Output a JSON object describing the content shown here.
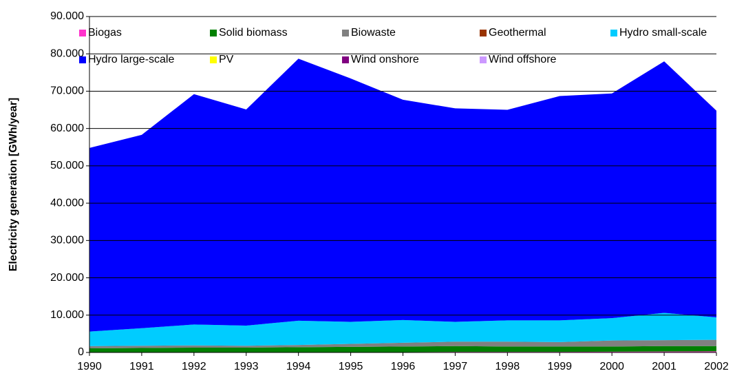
{
  "chart_data": {
    "type": "stacked_area",
    "y_label": "Electricity generation [GWh/year]",
    "categories": [
      "1990",
      "1991",
      "1992",
      "1993",
      "1994",
      "1995",
      "1996",
      "1997",
      "1998",
      "1999",
      "2000",
      "2001",
      "2002"
    ],
    "series": [
      {
        "name": "Biogas",
        "color": "#ff33cc",
        "values": [
          100,
          100,
          100,
          100,
          100,
          100,
          100,
          150,
          150,
          150,
          200,
          250,
          300
        ]
      },
      {
        "name": "Solid biomass",
        "color": "#008000",
        "values": [
          1000,
          1100,
          1200,
          1200,
          1300,
          1400,
          1500,
          1550,
          1450,
          1450,
          1400,
          1450,
          1400
        ]
      },
      {
        "name": "Biowaste",
        "color": "#808080",
        "values": [
          600,
          600,
          600,
          500,
          600,
          800,
          1000,
          1200,
          1300,
          1200,
          1600,
          1600,
          1700
        ]
      },
      {
        "name": "Geothermal",
        "color": "#993300",
        "values": [
          0,
          0,
          0,
          0,
          0,
          0,
          0,
          0,
          0,
          0,
          0,
          0,
          0
        ]
      },
      {
        "name": "Hydro small-scale",
        "color": "#00ccff",
        "values": [
          3900,
          4700,
          5600,
          5400,
          6500,
          5900,
          6100,
          5300,
          5700,
          5800,
          6000,
          7300,
          6000
        ]
      },
      {
        "name": "Hydro large-scale",
        "color": "#0000ff",
        "values": [
          49200,
          51800,
          61700,
          57900,
          70200,
          65200,
          59000,
          57200,
          56400,
          60100,
          60190,
          67380,
          55350
        ]
      },
      {
        "name": "PV",
        "color": "#ffff00",
        "values": [
          0,
          0,
          0,
          0,
          0,
          0,
          0,
          0,
          0,
          0,
          0,
          0,
          0
        ]
      },
      {
        "name": "Wind onshore",
        "color": "#800080",
        "values": [
          0,
          0,
          0,
          0,
          0,
          0,
          0,
          0,
          0,
          0,
          10,
          20,
          50
        ]
      },
      {
        "name": "Wind offshore",
        "color": "#cc99ff",
        "values": [
          0,
          0,
          0,
          0,
          0,
          0,
          0,
          0,
          0,
          0,
          0,
          0,
          0
        ]
      }
    ],
    "ylim": [
      0,
      90000
    ],
    "yticks": [
      0,
      {
        "value": 10000,
        "label": "10.000"
      },
      {
        "value": 20000,
        "label": "20.000"
      },
      {
        "value": 30000,
        "label": "30.000"
      },
      {
        "value": 40000,
        "label": "40.000"
      },
      {
        "value": 50000,
        "label": "50.000"
      },
      {
        "value": 60000,
        "label": "60.000"
      },
      {
        "value": 70000,
        "label": "70.000"
      },
      {
        "value": 80000,
        "label": "80.000"
      },
      {
        "value": 90000,
        "label": "90.000"
      }
    ],
    "grid": true,
    "legend": "top"
  }
}
